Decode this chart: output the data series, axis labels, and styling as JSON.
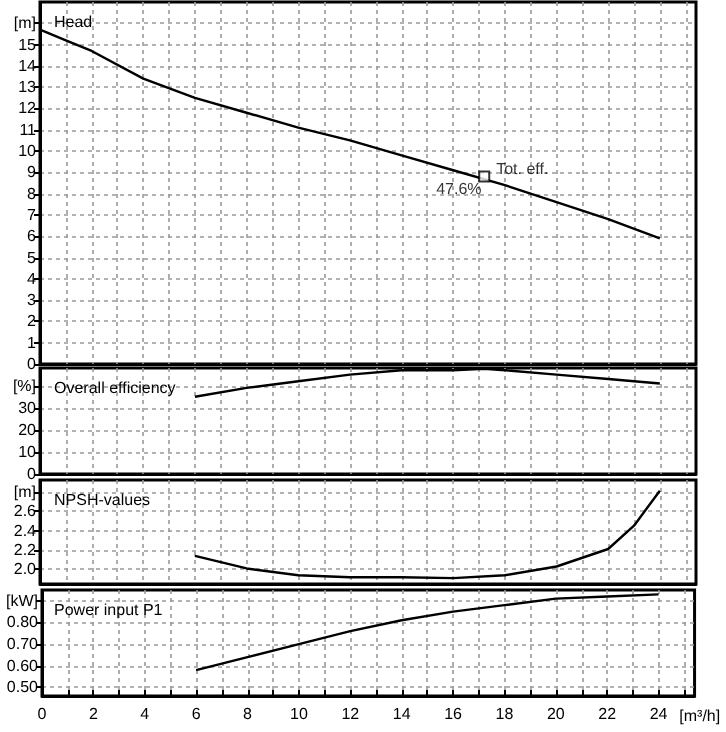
{
  "chart_data": [
    {
      "type": "line",
      "title": "Head",
      "x": [
        0,
        1,
        2,
        4,
        6,
        8,
        10,
        12,
        14,
        16,
        18,
        20,
        22,
        24
      ],
      "series": [
        {
          "color": "#000000",
          "values": [
            15.7,
            15.2,
            14.7,
            13.4,
            12.5,
            11.8,
            11.1,
            10.5,
            9.8,
            9.1,
            8.4,
            7.6,
            6.8,
            5.9
          ]
        },
        {
          "type": "scatter",
          "marker": "square",
          "color": "#000000",
          "x": [
            17.2
          ],
          "values": [
            8.8
          ]
        }
      ],
      "annotations": [
        {
          "text": "Tot. eff.",
          "x": 17.2,
          "y": 8.8
        },
        {
          "text": "47.6%",
          "x": 17.2,
          "y": 8.8
        }
      ],
      "xlim": [
        0,
        25.4
      ],
      "xticks": [
        0,
        {
          "value": 1,
          "label": null
        },
        2,
        {
          "value": 3,
          "label": null
        },
        4,
        {
          "value": 5,
          "label": null
        },
        6,
        {
          "value": 7,
          "label": null
        },
        8,
        {
          "value": 9,
          "label": null
        },
        10,
        {
          "value": 11,
          "label": null
        },
        12,
        {
          "value": 13,
          "label": null
        },
        14,
        {
          "value": 15,
          "label": null
        },
        16,
        {
          "value": 17,
          "label": null
        },
        18,
        {
          "value": 19,
          "label": null
        },
        20,
        {
          "value": 21,
          "label": null
        },
        22,
        {
          "value": 23,
          "label": null
        },
        24,
        {
          "value": 25,
          "label": null
        }
      ],
      "ylim": [
        0,
        17
      ],
      "yticks": [
        0,
        1,
        2,
        3,
        4,
        5,
        6,
        7,
        8,
        9,
        10,
        11,
        12,
        13,
        14,
        15,
        {
          "value": 16,
          "label": "[m]"
        }
      ],
      "grid": true,
      "tick_labels": "y"
    },
    {
      "type": "line",
      "title": "Overall efficiency",
      "x": [
        6,
        8,
        10,
        12,
        14,
        16,
        17.2,
        18,
        20,
        22,
        24
      ],
      "series": [
        {
          "color": "#000000",
          "values": [
            35,
            39,
            42,
            45,
            47,
            47,
            47.6,
            47,
            45,
            43,
            41
          ]
        }
      ],
      "xlim": [
        0,
        25.4
      ],
      "xticks": [
        0,
        {
          "value": 1,
          "label": null
        },
        2,
        {
          "value": 3,
          "label": null
        },
        4,
        {
          "value": 5,
          "label": null
        },
        6,
        {
          "value": 7,
          "label": null
        },
        8,
        {
          "value": 9,
          "label": null
        },
        10,
        {
          "value": 11,
          "label": null
        },
        12,
        {
          "value": 13,
          "label": null
        },
        14,
        {
          "value": 15,
          "label": null
        },
        16,
        {
          "value": 17,
          "label": null
        },
        18,
        {
          "value": 19,
          "label": null
        },
        20,
        {
          "value": 21,
          "label": null
        },
        22,
        {
          "value": 23,
          "label": null
        },
        24,
        {
          "value": 25,
          "label": null
        }
      ],
      "ylim": [
        0,
        48
      ],
      "yticks": [
        0,
        10,
        20,
        30,
        {
          "value": 40,
          "label": "[%]"
        }
      ],
      "grid": true,
      "tick_labels": "y"
    },
    {
      "type": "line",
      "title": "NPSH-values",
      "x": [
        6,
        8,
        10,
        12,
        14,
        16,
        18,
        20,
        22,
        23,
        24
      ],
      "series": [
        {
          "color": "#000000",
          "values": [
            2.14,
            2.01,
            1.94,
            1.92,
            1.92,
            1.91,
            1.94,
            2.03,
            2.21,
            2.45,
            2.81
          ]
        }
      ],
      "xlim": [
        0,
        25.4
      ],
      "xticks": [
        0,
        {
          "value": 1,
          "label": null
        },
        2,
        {
          "value": 3,
          "label": null
        },
        4,
        {
          "value": 5,
          "label": null
        },
        6,
        {
          "value": 7,
          "label": null
        },
        8,
        {
          "value": 9,
          "label": null
        },
        10,
        {
          "value": 11,
          "label": null
        },
        12,
        {
          "value": 13,
          "label": null
        },
        14,
        {
          "value": 15,
          "label": null
        },
        16,
        {
          "value": 17,
          "label": null
        },
        18,
        {
          "value": 19,
          "label": null
        },
        20,
        {
          "value": 21,
          "label": null
        },
        22,
        {
          "value": 23,
          "label": null
        },
        24,
        {
          "value": 25,
          "label": null
        }
      ],
      "ylim": [
        1.85,
        2.92
      ],
      "yticks": [
        {
          "value": 2.0,
          "label": "2.0"
        },
        2.2,
        2.4,
        2.6,
        {
          "value": 2.8,
          "label": "[m]"
        }
      ],
      "grid": true,
      "tick_labels": "y"
    },
    {
      "type": "line",
      "title": "Power input P1",
      "xlabel": "[m³/h]",
      "x": [
        6,
        8,
        10,
        12,
        14,
        16,
        18,
        20,
        22,
        24
      ],
      "series": [
        {
          "color": "#000000",
          "values": [
            0.58,
            0.64,
            0.7,
            0.76,
            0.81,
            0.85,
            0.88,
            0.91,
            0.92,
            0.93
          ]
        }
      ],
      "xlim": [
        0,
        25.4
      ],
      "xticks": [
        0,
        {
          "value": 1,
          "label": null
        },
        2,
        {
          "value": 3,
          "label": null
        },
        4,
        {
          "value": 5,
          "label": null
        },
        6,
        {
          "value": 7,
          "label": null
        },
        8,
        {
          "value": 9,
          "label": null
        },
        10,
        {
          "value": 11,
          "label": null
        },
        12,
        {
          "value": 13,
          "label": null
        },
        14,
        {
          "value": 15,
          "label": null
        },
        16,
        {
          "value": 17,
          "label": null
        },
        18,
        {
          "value": 19,
          "label": null
        },
        20,
        {
          "value": 21,
          "label": null
        },
        22,
        {
          "value": 23,
          "label": null
        },
        24,
        {
          "value": 25,
          "label": null
        }
      ],
      "ylim": [
        0.46,
        0.95
      ],
      "yticks": [
        {
          "value": 0.5,
          "label": "0.50"
        },
        {
          "value": 0.6,
          "label": "0.60"
        },
        {
          "value": 0.7,
          "label": "0.70"
        },
        {
          "value": 0.8,
          "label": "0.80"
        },
        {
          "value": 0.9,
          "label": "[kW]"
        }
      ],
      "grid": true
    }
  ]
}
